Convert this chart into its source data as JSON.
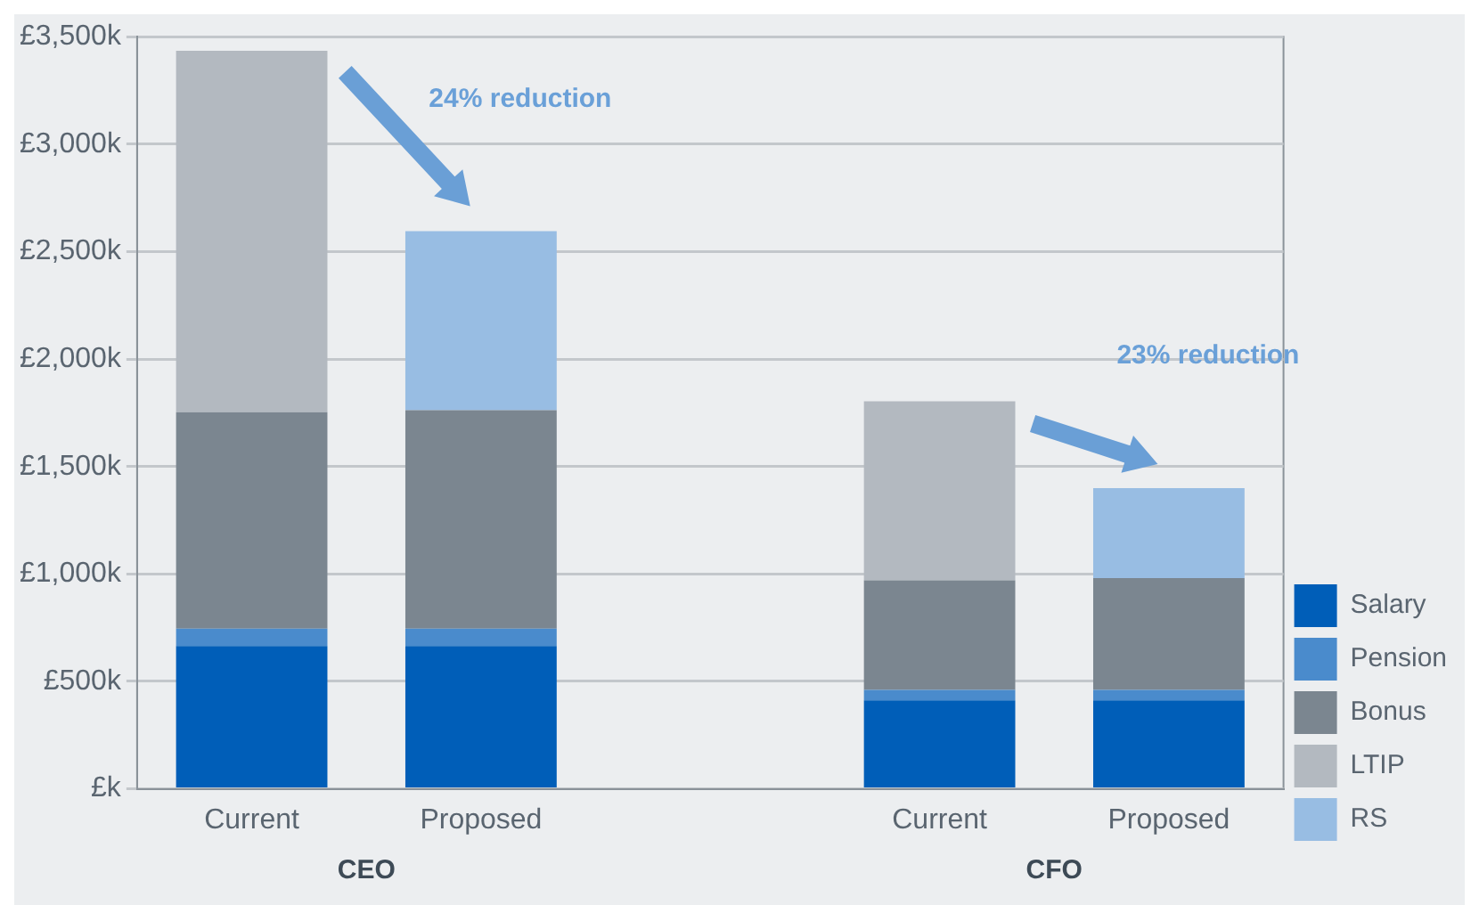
{
  "chart_data": {
    "type": "bar",
    "stacked": true,
    "categories": [
      "Current",
      "Proposed",
      null,
      "Current",
      "Proposed"
    ],
    "series": [
      {
        "name": "Salary",
        "color": "#005eb8",
        "values": [
          665,
          665,
          null,
          412,
          412
        ]
      },
      {
        "name": "Pension",
        "color": "#4a8bcc",
        "values": [
          80,
          80,
          null,
          49,
          49
        ]
      },
      {
        "name": "Bonus",
        "color": "#7b8690",
        "values": [
          1008,
          1017,
          null,
          509,
          520
        ]
      },
      {
        "name": "LTIP",
        "color": "#b3b9c0",
        "values": [
          1682,
          null,
          null,
          833,
          null
        ]
      },
      {
        "name": "RS",
        "color": "#98bde3",
        "values": [
          null,
          833,
          null,
          null,
          418
        ]
      }
    ],
    "ylim": [
      0,
      3500
    ],
    "yticks": [
      {
        "value": 0,
        "label": "£k"
      },
      {
        "value": 500,
        "label": "£500k"
      },
      {
        "value": 1000,
        "label": "£1,000k"
      },
      {
        "value": 1500,
        "label": "£1,500k"
      },
      {
        "value": 2000,
        "label": "£2,000k"
      },
      {
        "value": 2500,
        "label": "£2,500k"
      },
      {
        "value": 3000,
        "label": "£3,000k"
      },
      {
        "value": 3500,
        "label": "£3,500k"
      }
    ],
    "grid": "y",
    "legend": "bottom right",
    "annotations": [
      "24% reduction",
      "23% reduction",
      "CEO",
      "CFO"
    ]
  }
}
